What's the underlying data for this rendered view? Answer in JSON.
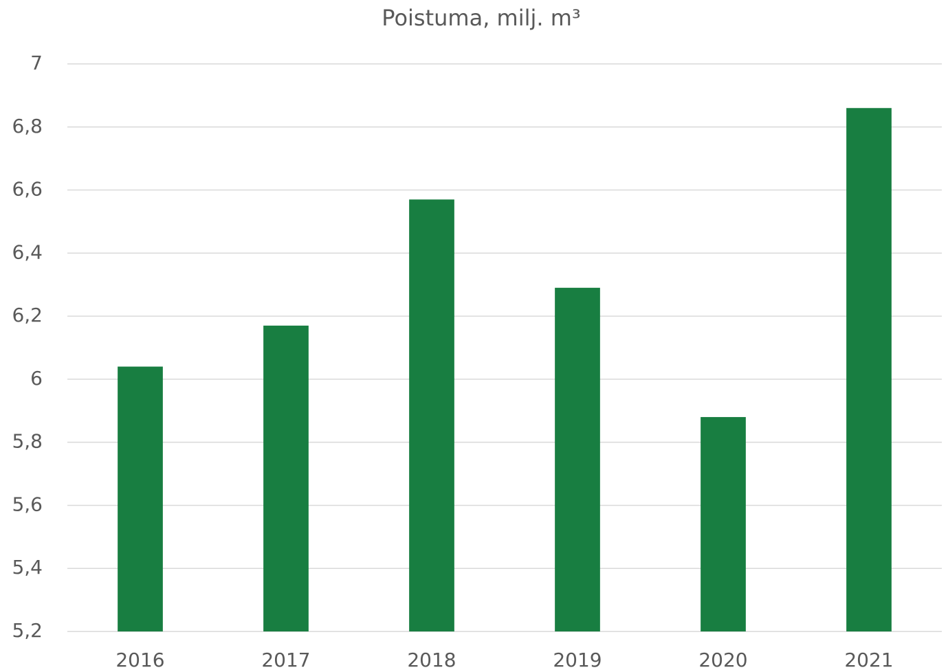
{
  "chart_data": {
    "type": "bar",
    "title": "Poistuma, milj. m³",
    "categories": [
      "2016",
      "2017",
      "2018",
      "2019",
      "2020",
      "2021"
    ],
    "values": [
      6.04,
      6.17,
      6.57,
      6.29,
      5.88,
      6.86
    ],
    "color": "#187e41",
    "ylim": [
      5.2,
      7
    ],
    "yticks": [
      {
        "value": 5.2,
        "label": "5,2"
      },
      {
        "value": 5.4,
        "label": "5,4"
      },
      {
        "value": 5.6,
        "label": "5,6"
      },
      {
        "value": 5.8,
        "label": "5,8"
      },
      6,
      {
        "value": 6.2,
        "label": "6,2"
      },
      {
        "value": 6.4,
        "label": "6,4"
      },
      {
        "value": 6.6,
        "label": "6,6"
      },
      {
        "value": 6.8,
        "label": "6,8"
      },
      7
    ],
    "grid": true
  }
}
